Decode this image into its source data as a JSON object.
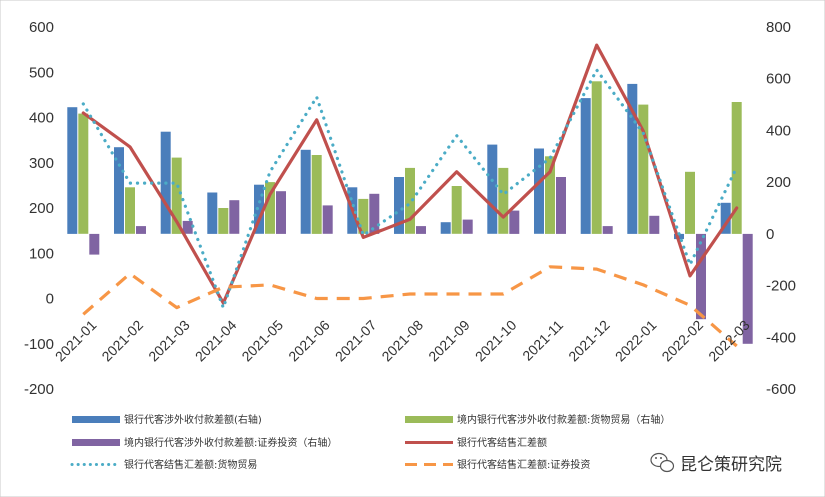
{
  "chart_data": {
    "type": "bar",
    "categories": [
      "2021-01",
      "2021-02",
      "2021-03",
      "2021-04",
      "2021-05",
      "2021-06",
      "2021-07",
      "2021-08",
      "2021-09",
      "2021-10",
      "2021-11",
      "2021-12",
      "2022-01",
      "2022-02",
      "2022-03"
    ],
    "ylim_left": [
      -200,
      600
    ],
    "yticks_left": [
      -200,
      -100,
      0,
      100,
      200,
      300,
      400,
      500,
      600
    ],
    "ylim_right": [
      -600,
      800
    ],
    "yticks_right": [
      -600,
      -400,
      -200,
      0,
      200,
      400,
      600,
      800
    ],
    "grid": false,
    "legend_position": "bottom",
    "series": [
      {
        "name": "银行代客涉外收付款差额(右轴)",
        "kind": "bar",
        "axis": "right",
        "color": "#4A7EBB",
        "values": [
          490,
          335,
          395,
          160,
          190,
          325,
          180,
          220,
          45,
          345,
          330,
          525,
          580,
          -20,
          120
        ]
      },
      {
        "name": "境内银行代客涉外收付款差额:货物贸易（右轴）",
        "kind": "bar",
        "axis": "right",
        "color": "#9BBB59",
        "values": [
          465,
          180,
          295,
          100,
          200,
          305,
          135,
          255,
          185,
          255,
          300,
          590,
          500,
          240,
          510
        ]
      },
      {
        "name": "境内银行代客涉外收付款差额:证券投资（右轴）",
        "kind": "bar",
        "axis": "right",
        "color": "#8064A2",
        "values": [
          -80,
          30,
          50,
          130,
          165,
          110,
          155,
          30,
          55,
          90,
          220,
          30,
          70,
          -330,
          -425
        ]
      },
      {
        "name": "银行代客结售汇差额",
        "kind": "line",
        "axis": "left",
        "color": "#C0504D",
        "values": [
          410,
          335,
          170,
          -10,
          230,
          395,
          135,
          175,
          280,
          180,
          280,
          560,
          370,
          50,
          200
        ]
      },
      {
        "name": "银行代客结售汇差额:货物贸易",
        "kind": "dotted",
        "axis": "left",
        "color": "#4BACC6",
        "values": [
          430,
          255,
          255,
          -20,
          280,
          445,
          140,
          210,
          360,
          230,
          310,
          505,
          365,
          75,
          290
        ]
      },
      {
        "name": "银行代客结售汇差额:证券投资",
        "kind": "dashed",
        "axis": "left",
        "color": "#F79646",
        "values": [
          -35,
          55,
          -20,
          25,
          30,
          0,
          0,
          10,
          10,
          10,
          70,
          65,
          30,
          -15,
          -105
        ]
      }
    ]
  },
  "watermark": {
    "text": "昆仑策研究院",
    "icon": "wechat-icon"
  }
}
